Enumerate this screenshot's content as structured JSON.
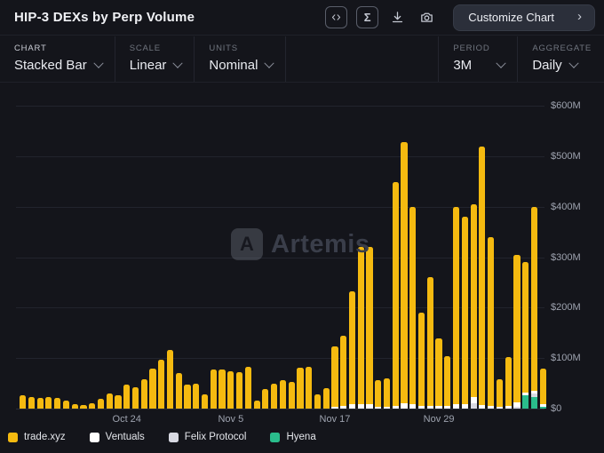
{
  "header": {
    "title": "HIP-3 DEXs by Perp Volume",
    "customize_button": "Customize Chart",
    "customize_chevron": "›",
    "sigma_glyph": "Σ"
  },
  "controls": {
    "chart": {
      "label": "CHART",
      "value": "Stacked Bar"
    },
    "scale": {
      "label": "SCALE",
      "value": "Linear"
    },
    "units": {
      "label": "UNITS",
      "value": "Nominal"
    },
    "period": {
      "label": "PERIOD",
      "value": "3M"
    },
    "aggregate": {
      "label": "AGGREGATE",
      "value": "Daily"
    }
  },
  "watermark": {
    "logo_glyph": "A",
    "text": "Artemis"
  },
  "chart_data": {
    "type": "bar",
    "variant": "stacked",
    "title": "HIP-3 DEXs by Perp Volume",
    "unit": "USD millions (daily perp volume)",
    "ylim": [
      0,
      600
    ],
    "y_tick_labels": [
      "$600M",
      "$500M",
      "$400M",
      "$300M",
      "$200M",
      "$100M",
      "$0"
    ],
    "y_tick_values": [
      600,
      500,
      400,
      300,
      200,
      100,
      0
    ],
    "x_tick_labels": [
      "Oct 24",
      "Nov 5",
      "Nov 17",
      "Nov 29"
    ],
    "x_tick_bar_index": [
      12,
      24,
      36,
      48
    ],
    "bar_count": 61,
    "grid": "horizontal",
    "legend_position": "bottom",
    "stack_order_bottom_to_top": [
      "Hyena",
      "Felix Protocol",
      "Ventuals",
      "trade.xyz"
    ],
    "series": [
      {
        "name": "trade.xyz",
        "color": "#F5BA10",
        "values": [
          26,
          22,
          21,
          22,
          21,
          15,
          9,
          7,
          11,
          19,
          30,
          26,
          48,
          42,
          58,
          80,
          97,
          116,
          70,
          47,
          50,
          28,
          78,
          77,
          74,
          72,
          82,
          16,
          38,
          50,
          56,
          53,
          81,
          82,
          29,
          40,
          120,
          140,
          224,
          311,
          312,
          52,
          56,
          443,
          518,
          392,
          184,
          254,
          134,
          98,
          392,
          371,
          383,
          512,
          334,
          54,
          97,
          293,
          259,
          365,
          71
        ]
      },
      {
        "name": "Ventuals",
        "color": "#FFFFFF",
        "values": [
          0,
          0,
          0,
          0,
          0,
          0,
          0,
          0,
          0,
          0,
          0,
          0,
          0,
          0,
          0,
          0,
          0,
          0,
          0,
          0,
          0,
          0,
          0,
          0,
          0,
          0,
          0,
          0,
          0,
          0,
          0,
          0,
          0,
          0,
          0,
          0,
          4,
          5,
          8,
          9,
          8,
          4,
          4,
          6,
          10,
          8,
          6,
          6,
          5,
          6,
          8,
          9,
          12,
          7,
          6,
          4,
          5,
          8,
          5,
          5,
          5
        ]
      },
      {
        "name": "Felix Protocol",
        "color": "#D8D9E2",
        "values": [
          0,
          0,
          0,
          0,
          0,
          0,
          0,
          0,
          0,
          0,
          0,
          0,
          0,
          0,
          0,
          0,
          0,
          0,
          0,
          0,
          0,
          0,
          0,
          0,
          0,
          0,
          0,
          0,
          0,
          0,
          0,
          0,
          0,
          0,
          0,
          0,
          0,
          0,
          0,
          0,
          0,
          0,
          0,
          0,
          0,
          0,
          0,
          0,
          0,
          0,
          0,
          0,
          10,
          0,
          0,
          0,
          0,
          4,
          0,
          7,
          0
        ]
      },
      {
        "name": "Hyena",
        "color": "#2ABD8C",
        "values": [
          0,
          0,
          0,
          0,
          0,
          0,
          0,
          0,
          0,
          0,
          0,
          0,
          0,
          0,
          0,
          0,
          0,
          0,
          0,
          0,
          0,
          0,
          0,
          0,
          0,
          0,
          0,
          0,
          0,
          0,
          0,
          0,
          0,
          0,
          0,
          0,
          0,
          0,
          0,
          0,
          0,
          0,
          0,
          0,
          0,
          0,
          0,
          0,
          0,
          0,
          0,
          0,
          0,
          0,
          0,
          0,
          0,
          0,
          26,
          23,
          3
        ]
      }
    ]
  }
}
